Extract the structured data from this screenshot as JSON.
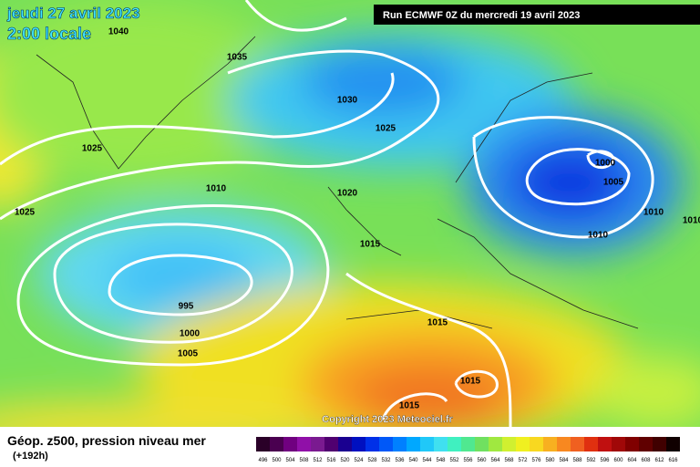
{
  "header": {
    "title": "jeudi 27 avril 2023",
    "local_time": "2:00 locale",
    "run": "Run ECMWF 0Z du mercredi 19 avril 2023"
  },
  "isobar_labels": [
    1040,
    1035,
    1030,
    1025,
    1025,
    1010,
    1020,
    1025,
    1015,
    995,
    1000,
    1005,
    1015,
    1015,
    1015,
    1000,
    1005,
    1010,
    1010,
    1010
  ],
  "copyright": "Copyright 2023 Meteociel.fr",
  "legend": {
    "title": "Géop. z500, pression niveau mer",
    "lead": "(+192h)",
    "scale": [
      {
        "value": 496,
        "color": "#2a0028"
      },
      {
        "value": 500,
        "color": "#4a0050"
      },
      {
        "value": 504,
        "color": "#700080"
      },
      {
        "value": 508,
        "color": "#9010a8"
      },
      {
        "value": 512,
        "color": "#7a1a90"
      },
      {
        "value": 516,
        "color": "#500070"
      },
      {
        "value": 520,
        "color": "#1a0090"
      },
      {
        "value": 524,
        "color": "#0010c0"
      },
      {
        "value": 528,
        "color": "#0030e8"
      },
      {
        "value": 532,
        "color": "#0058f8"
      },
      {
        "value": 536,
        "color": "#0080ff"
      },
      {
        "value": 540,
        "color": "#00a8ff"
      },
      {
        "value": 544,
        "color": "#20c8f8"
      },
      {
        "value": 548,
        "color": "#40e0f0"
      },
      {
        "value": 552,
        "color": "#40f0c0"
      },
      {
        "value": 556,
        "color": "#50e890"
      },
      {
        "value": 560,
        "color": "#70e060"
      },
      {
        "value": 564,
        "color": "#a0e840"
      },
      {
        "value": 568,
        "color": "#d0f030"
      },
      {
        "value": 572,
        "color": "#f0f020"
      },
      {
        "value": 576,
        "color": "#f8d820"
      },
      {
        "value": 580,
        "color": "#f8b020"
      },
      {
        "value": 584,
        "color": "#f88820"
      },
      {
        "value": 588,
        "color": "#f06020"
      },
      {
        "value": 592,
        "color": "#e03010"
      },
      {
        "value": 596,
        "color": "#c01010"
      },
      {
        "value": 600,
        "color": "#a00808"
      },
      {
        "value": 604,
        "color": "#800000"
      },
      {
        "value": 608,
        "color": "#600000"
      },
      {
        "value": 612,
        "color": "#400000"
      },
      {
        "value": 616,
        "color": "#100000"
      }
    ]
  }
}
